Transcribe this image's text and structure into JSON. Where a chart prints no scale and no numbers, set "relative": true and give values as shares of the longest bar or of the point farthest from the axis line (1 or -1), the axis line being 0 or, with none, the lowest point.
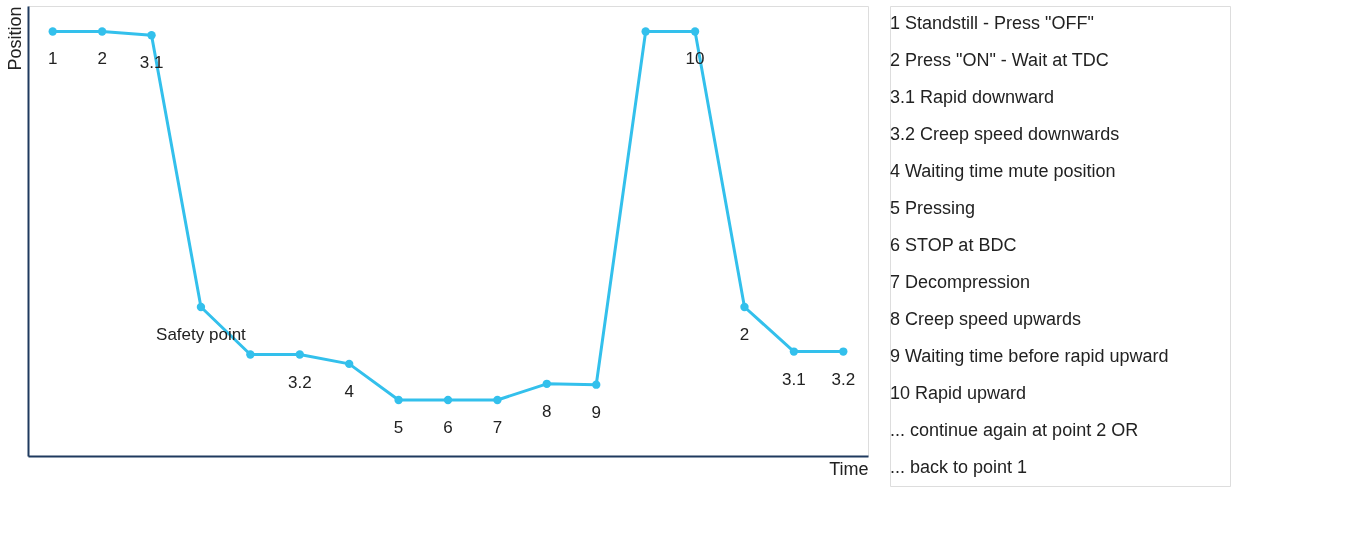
{
  "chart_data": [
    {
      "type": "line",
      "relative": true,
      "xlabel": "Time",
      "ylabel": "Position",
      "marker": "circle",
      "grid": false,
      "categories": [
        null,
        null,
        null,
        null,
        null,
        null,
        null,
        null,
        null,
        null,
        null,
        null,
        null,
        null,
        null,
        null,
        null
      ],
      "series": [
        {
          "color": "#33c0ec",
          "values": [
            1.0,
            1.0,
            0.991,
            0.351,
            0.239,
            0.239,
            0.217,
            0.132,
            0.132,
            0.132,
            0.17,
            0.168,
            1.0,
            1.0,
            0.351,
            0.246,
            0.246
          ]
        }
      ],
      "annotations": [
        "1",
        "2",
        "3.1",
        "Safety point",
        "3.2",
        "4",
        "5",
        "6",
        "7",
        "8",
        "9",
        "10",
        "2",
        "3.1",
        "3.2"
      ]
    },
    {
      "type": "other",
      "annotations": [
        "1  Standstill - Press \"OFF\"",
        "2  Press \"ON\" - Wait at TDC",
        "3.1  Rapid downward",
        "3.2  Creep speed downwards",
        "4  Waiting time mute position",
        "5  Pressing",
        "6  STOP at BDC",
        "7  Decompression",
        "8  Creep speed upwards",
        "9  Waiting time before rapid upward",
        "10  Rapid upward",
        "... continue again at point 2 OR",
        "... back to point 1"
      ]
    }
  ]
}
